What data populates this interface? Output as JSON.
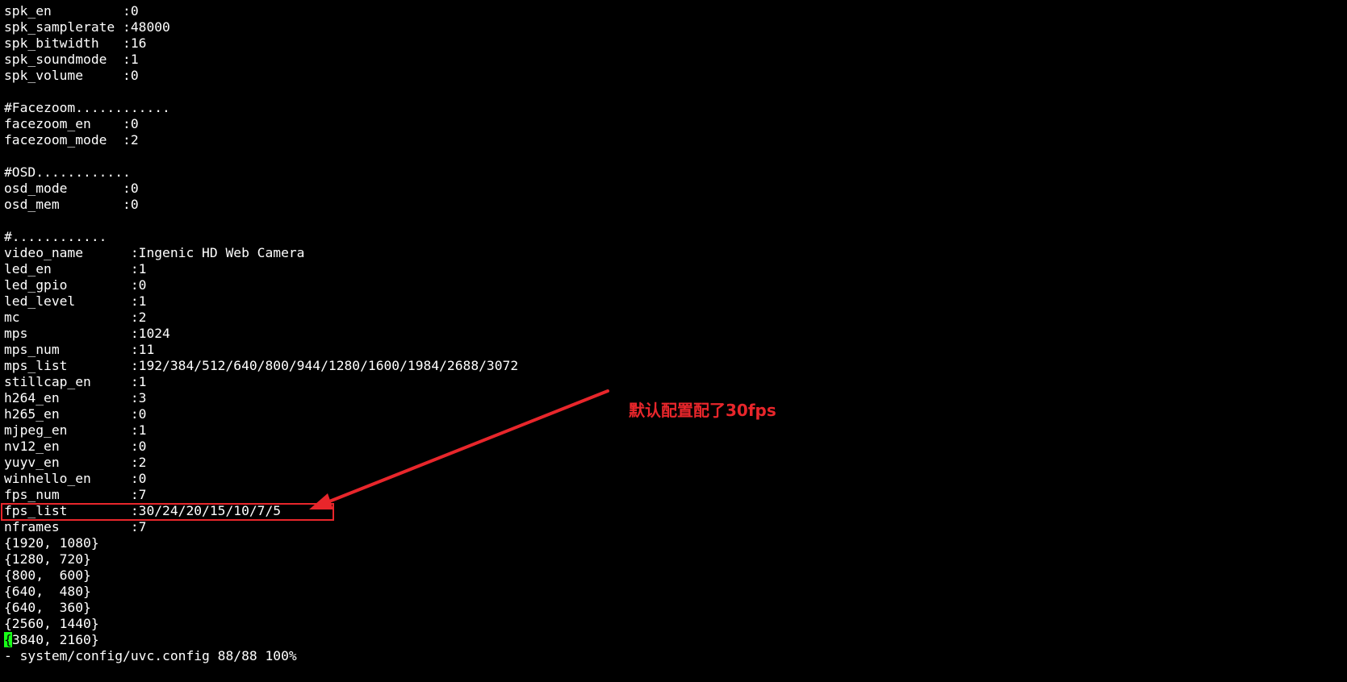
{
  "terminal": {
    "lines": [
      "spk_en         :0",
      "spk_samplerate :48000",
      "spk_bitwidth   :16",
      "spk_soundmode  :1",
      "spk_volume     :0",
      "",
      "#Facezoom............",
      "facezoom_en    :0",
      "facezoom_mode  :2",
      "",
      "#OSD............",
      "osd_mode       :0",
      "osd_mem        :0",
      "",
      "#............",
      "video_name      :Ingenic HD Web Camera",
      "led_en          :1",
      "led_gpio        :0",
      "led_level       :1",
      "mc              :2",
      "mps             :1024",
      "mps_num         :11",
      "mps_list        :192/384/512/640/800/944/1280/1600/1984/2688/3072",
      "stillcap_en     :1",
      "h264_en         :3",
      "h265_en         :0",
      "mjpeg_en        :1",
      "nv12_en         :0",
      "yuyv_en         :2",
      "winhello_en     :0",
      "fps_num         :7",
      "fps_list        :30/24/20/15/10/7/5",
      "nframes         :7",
      "{1920, 1080}",
      "{1280, 720}",
      "{800,  600}",
      "{640,  480}",
      "{640,  360}",
      "{2560, 1440}"
    ],
    "cursor_line": {
      "cursor_char": "{",
      "rest": "3840, 2160}"
    },
    "status_line": "- system/config/uvc.config 88/88 100%"
  },
  "annotation": {
    "text": "默认配置配了30fps",
    "color": "#e8262b"
  },
  "colors": {
    "background": "#000000",
    "foreground": "#ffffff",
    "cursor": "#18ff18"
  }
}
